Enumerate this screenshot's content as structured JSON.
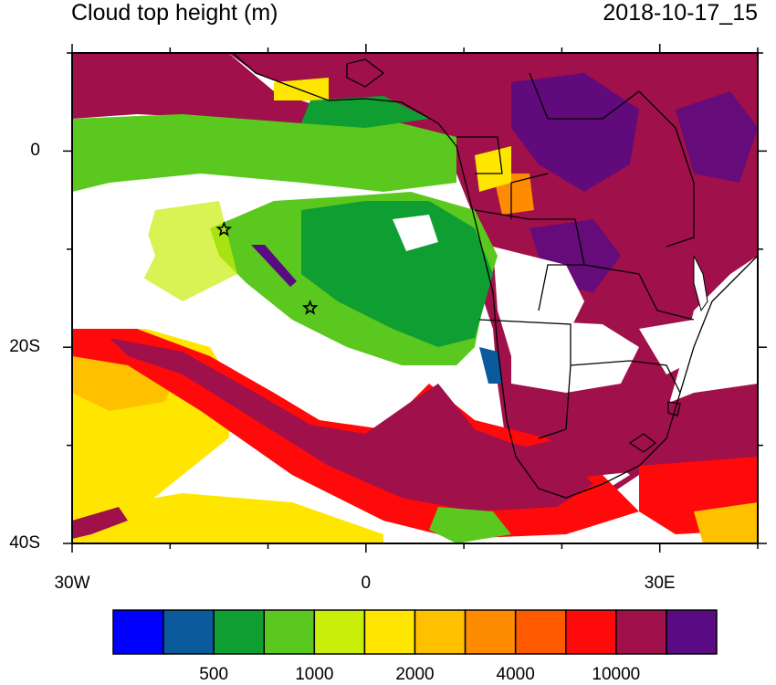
{
  "title": "Cloud top height (m)",
  "timestamp": "2018-10-17_15",
  "y_axis_labels": [
    {
      "text": "0",
      "lat": 0
    },
    {
      "text": "20S",
      "lat": -20
    },
    {
      "text": "40S",
      "lat": -40
    }
  ],
  "x_axis_labels": [
    {
      "text": "30W",
      "lon": -30
    },
    {
      "text": "0",
      "lon": 0
    },
    {
      "text": "30E",
      "lon": 30
    }
  ],
  "extent": {
    "lon_min": -30,
    "lon_max": 40,
    "lat_min": -40,
    "lat_max": 10
  },
  "colorbar": {
    "colors": [
      "#0000ff",
      "#0a5a9c",
      "#0e9e32",
      "#5ac81e",
      "#c8ee0a",
      "#ffe600",
      "#ffc000",
      "#ff8c00",
      "#ff5a00",
      "#ff0a0a",
      "#a0104a",
      "#5a0a82"
    ],
    "labels": [
      "500",
      "1000",
      "2000",
      "4000",
      "10000"
    ]
  },
  "markers": [
    {
      "name": "star",
      "lon": -14.5,
      "lat": -8
    },
    {
      "name": "star",
      "lon": -5.7,
      "lat": -16
    }
  ]
}
